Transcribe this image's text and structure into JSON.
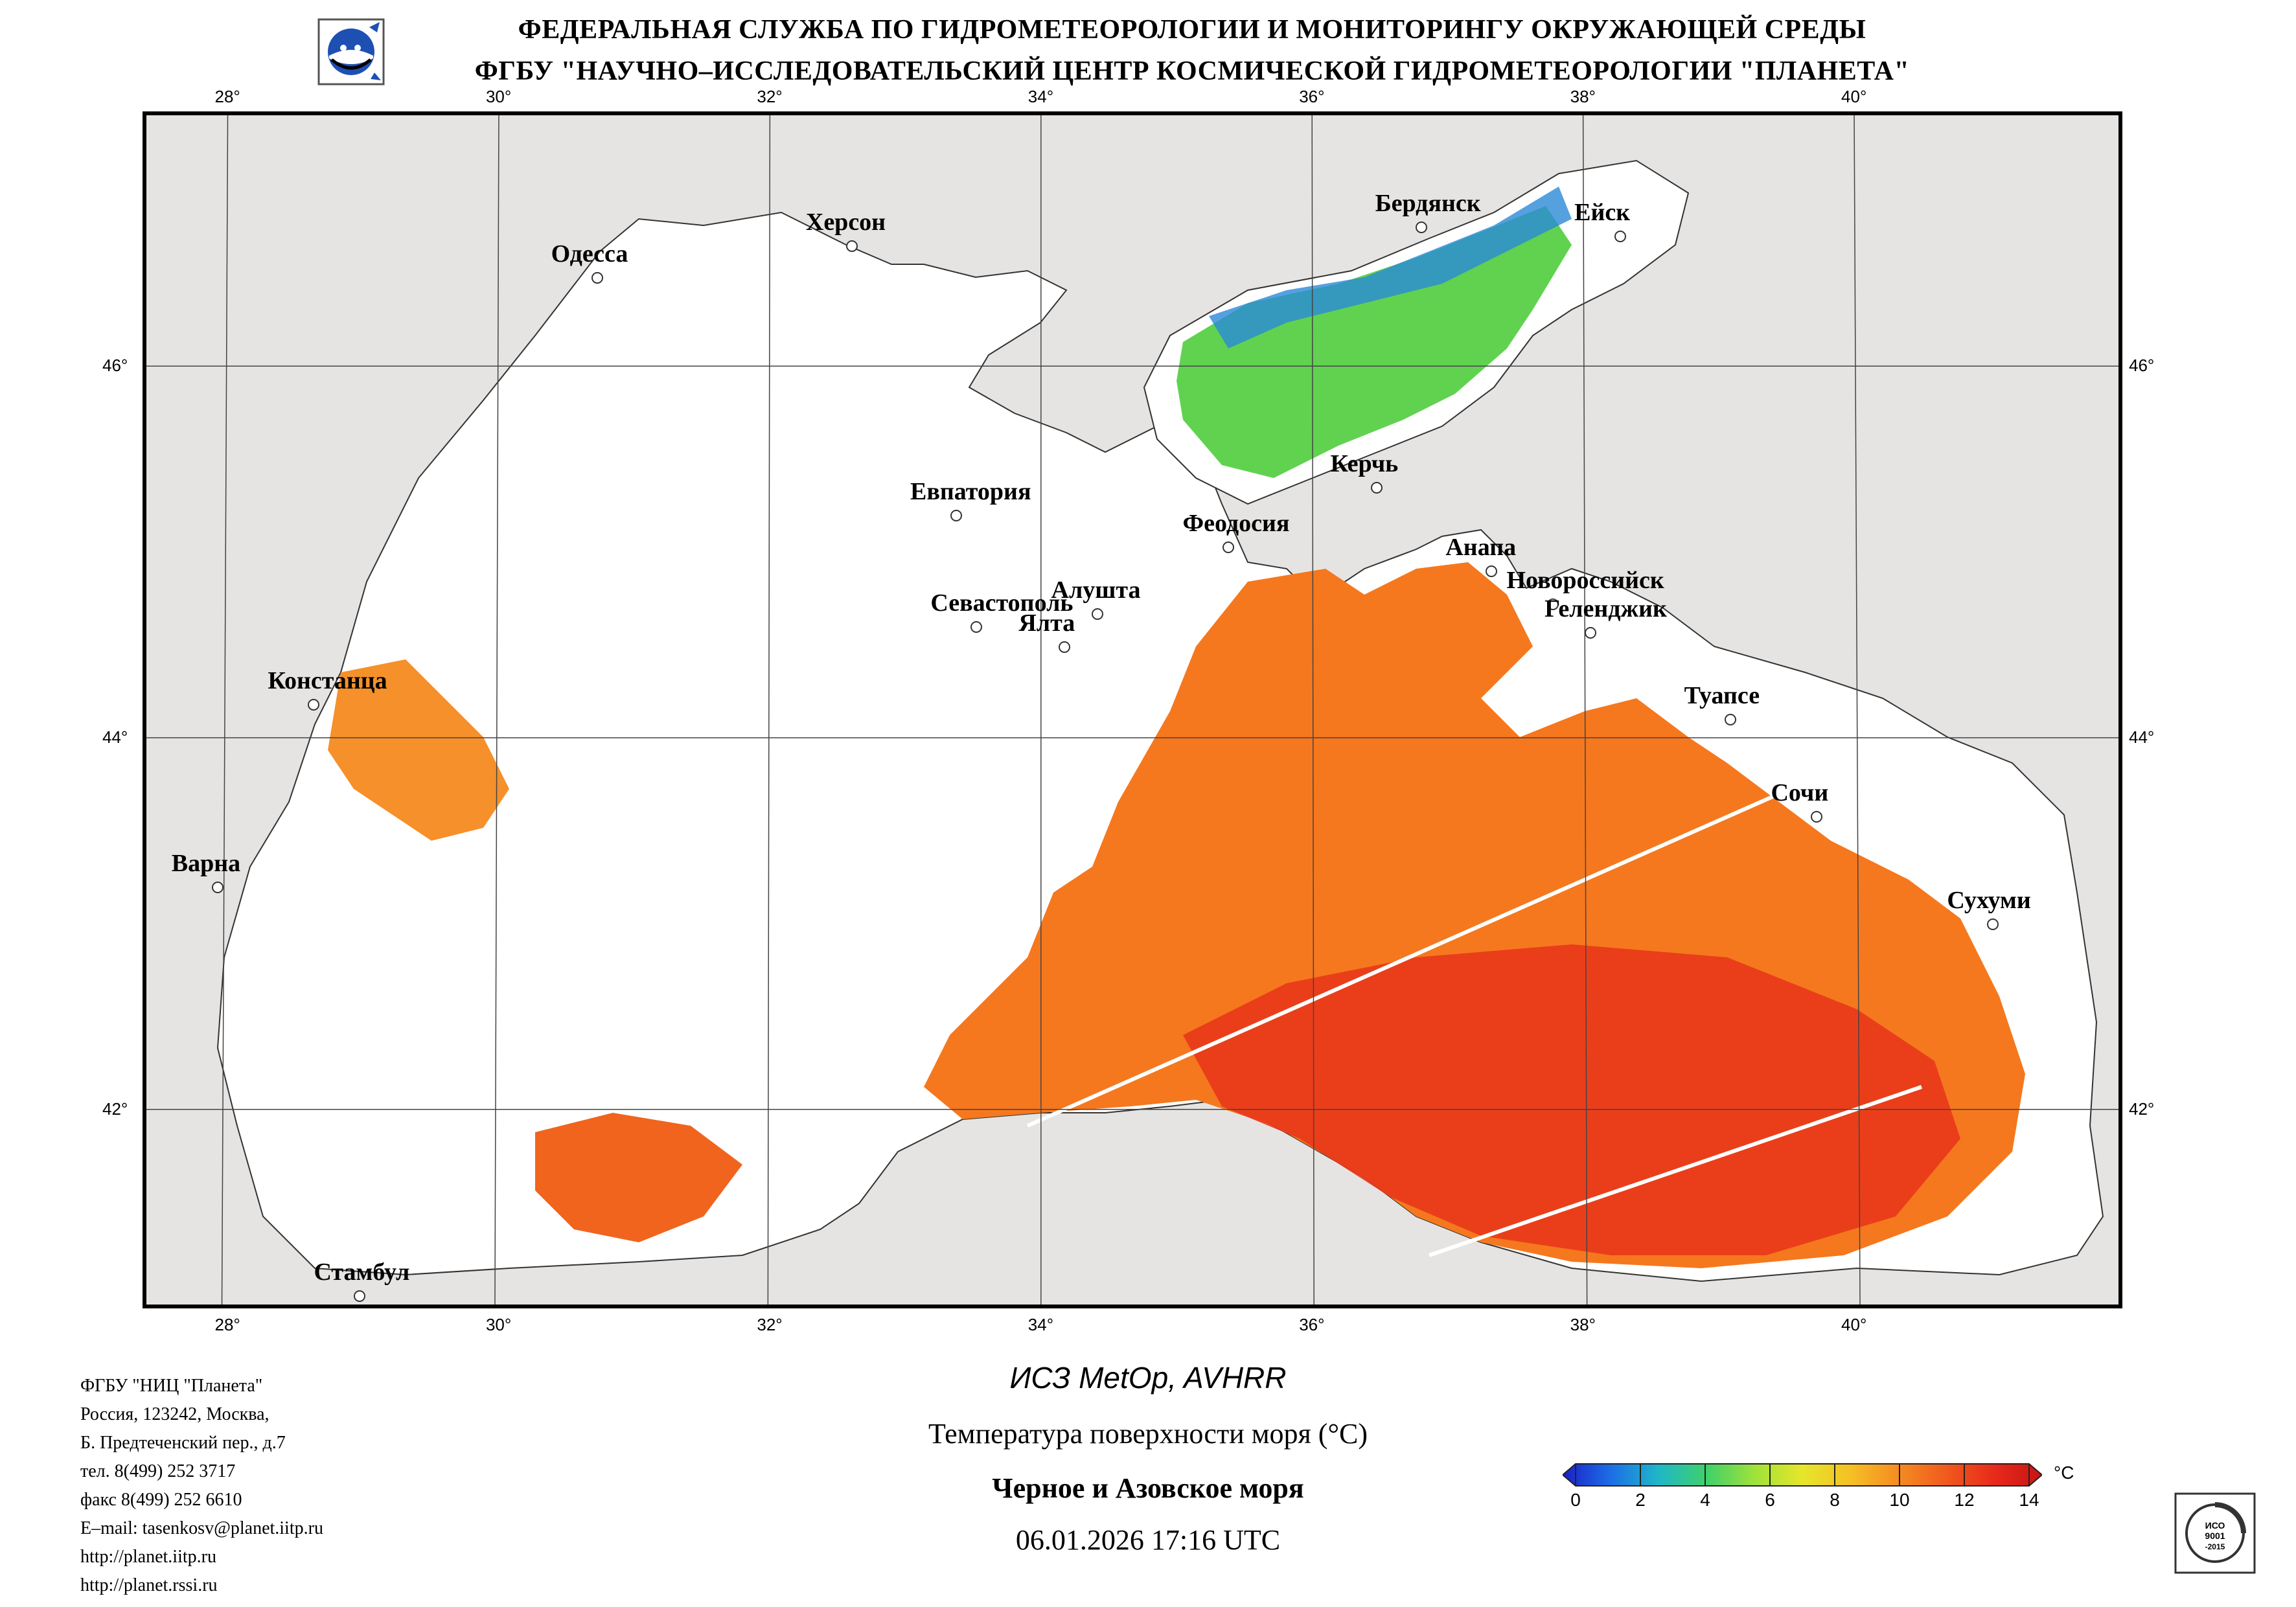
{
  "header": {
    "line1": "ФЕДЕРАЛЬНАЯ СЛУЖБА ПО ГИДРОМЕТЕОРОЛОГИИ И МОНИТОРИНГУ ОКРУЖАЮЩЕЙ СРЕДЫ",
    "line2": "ФГБУ \"НАУЧНО–ИССЛЕДОВАТЕЛЬСКИЙ ЦЕНТР КОСМИЧЕСКОЙ ГИДРОМЕТЕОРОЛОГИИ \"ПЛАНЕТА\"",
    "logo_icon": "planeta-logo-icon"
  },
  "map": {
    "lon_ticks": [
      "28°",
      "30°",
      "32°",
      "34°",
      "36°",
      "38°",
      "40°"
    ],
    "lat_ticks": [
      "46°",
      "44°",
      "42°"
    ],
    "lon_values": [
      28,
      30,
      32,
      34,
      36,
      38,
      40
    ],
    "lat_values": [
      46,
      44,
      42
    ],
    "lon_range": [
      27.4,
      41.95
    ],
    "lat_range": [
      40.95,
      47.35
    ],
    "colors": {
      "land": "#e6e4e2",
      "cloud_or_nodata": "#ffffff",
      "coastline": "#333333",
      "border": "#777777",
      "grid": "#444444"
    },
    "cities": [
      {
        "name": "Одесса",
        "lon": 30.72,
        "lat": 46.48
      },
      {
        "name": "Херсон",
        "lon": 32.6,
        "lat": 46.65
      },
      {
        "name": "Бердянск",
        "lon": 36.8,
        "lat": 46.75
      },
      {
        "name": "Ейск",
        "lon": 38.27,
        "lat": 46.7
      },
      {
        "name": "Евпатория",
        "lon": 33.37,
        "lat": 45.2
      },
      {
        "name": "Керчь",
        "lon": 36.47,
        "lat": 45.35
      },
      {
        "name": "Феодосия",
        "lon": 35.38,
        "lat": 45.03
      },
      {
        "name": "Анапа",
        "lon": 37.32,
        "lat": 44.9
      },
      {
        "name": "Новороссийск",
        "lon": 37.77,
        "lat": 44.72
      },
      {
        "name": "Геленджик",
        "lon": 38.05,
        "lat": 44.57
      },
      {
        "name": "Алушта",
        "lon": 34.41,
        "lat": 44.67
      },
      {
        "name": "Севастополь",
        "lon": 33.52,
        "lat": 44.6
      },
      {
        "name": "Ялта",
        "lon": 34.17,
        "lat": 44.49
      },
      {
        "name": "Констанца",
        "lon": 28.63,
        "lat": 44.18
      },
      {
        "name": "Туапсе",
        "lon": 39.08,
        "lat": 44.1
      },
      {
        "name": "Сочи",
        "lon": 39.72,
        "lat": 43.58
      },
      {
        "name": "Варна",
        "lon": 27.92,
        "lat": 43.2
      },
      {
        "name": "Сухуми",
        "lon": 41.02,
        "lat": 43.0
      },
      {
        "name": "Стамбул",
        "lon": 28.97,
        "lat": 41.0
      }
    ]
  },
  "footer": {
    "org_lines": [
      "ФГБУ \"НИЦ \"Планета\"",
      "Россия, 123242, Москва,",
      "Б. Предтеченский пер., д.7",
      "тел. 8(499) 252 3717",
      "факс 8(499) 252 6610",
      "E–mail: tasenkosv@planet.iitp.ru",
      "http://planet.iitp.ru",
      "http://planet.rssi.ru"
    ],
    "satellite": "ИСЗ MetOp, AVHRR",
    "product": "Температура поверхности моря (°С)",
    "region": "Черное и Азовское моря",
    "datetime": "06.01.2026 17:16 UTC",
    "iso_badge": "ISO 9001-2015 badge",
    "iso_text": "ИСО 9001 -2015"
  },
  "colorbar": {
    "unit": "°C",
    "min": 0,
    "max": 14,
    "ticks": [
      "0",
      "2",
      "4",
      "6",
      "8",
      "10",
      "12",
      "14"
    ],
    "colors": [
      "#1a1fc8",
      "#1c6ee6",
      "#1fb7c8",
      "#3fd06a",
      "#9fe23a",
      "#e6e62a",
      "#f5c024",
      "#f58c22",
      "#f05a1e",
      "#e82a1a",
      "#c81414"
    ]
  }
}
